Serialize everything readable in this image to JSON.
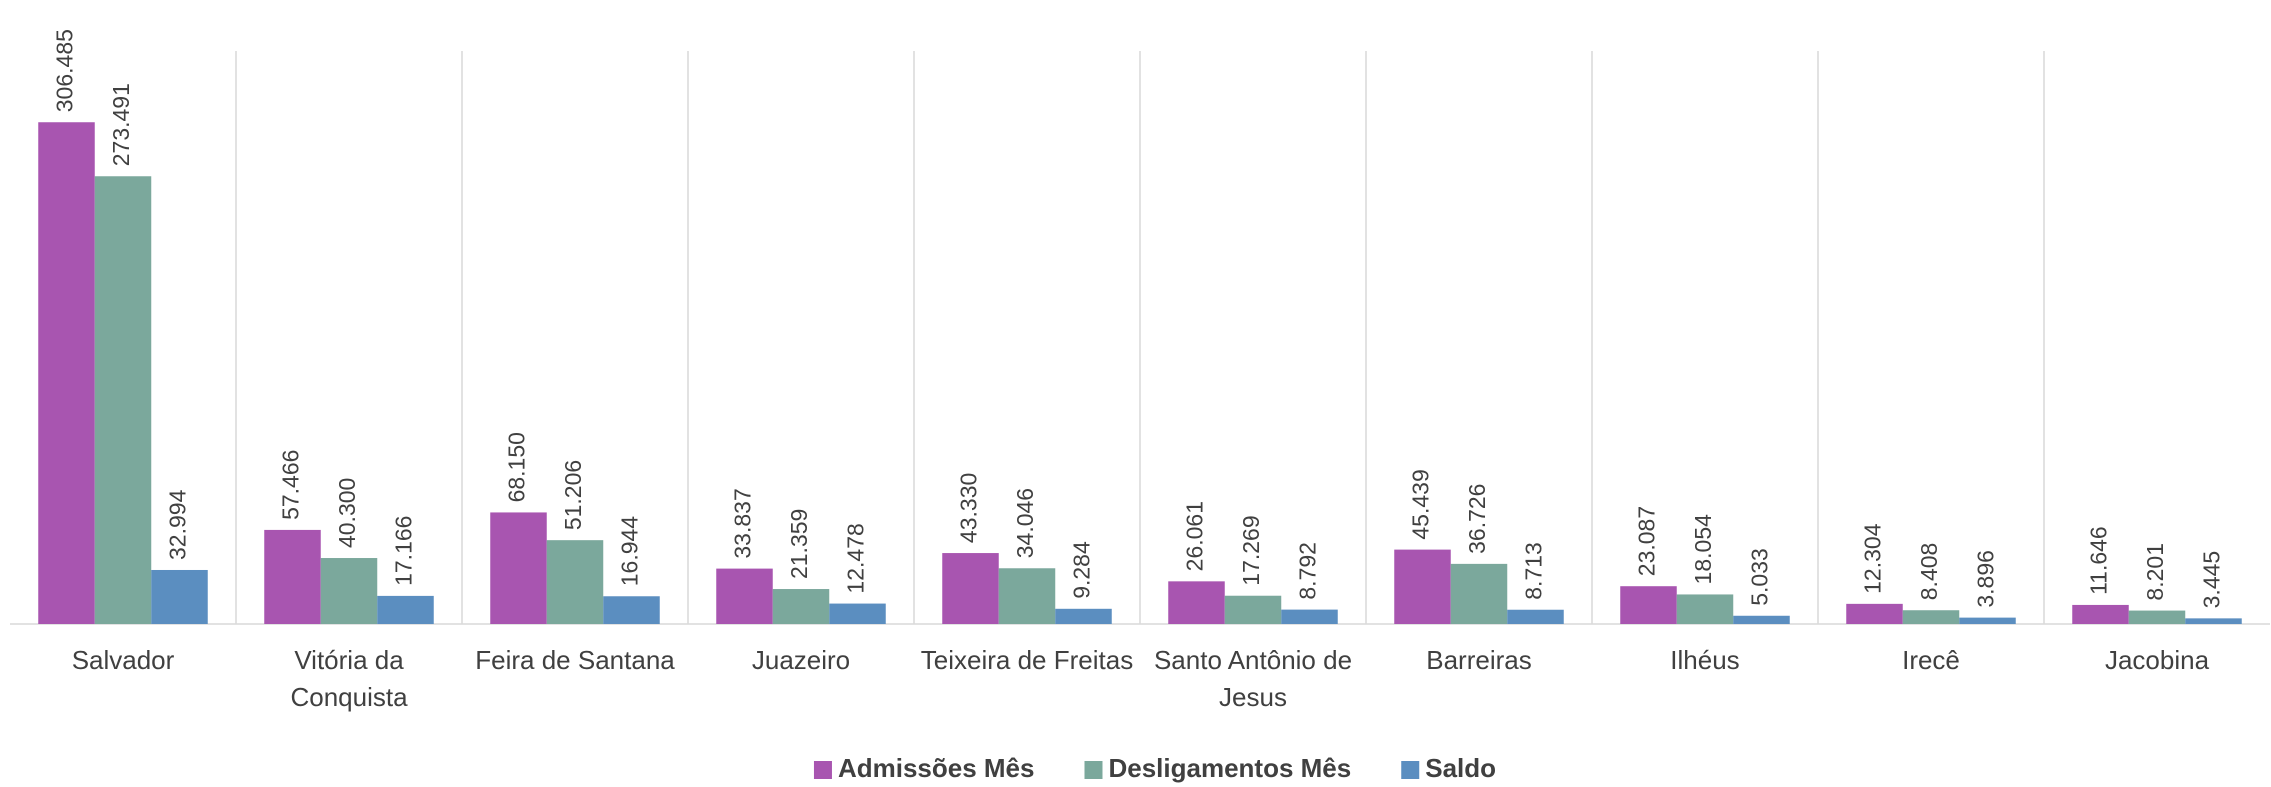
{
  "chart_data": {
    "type": "bar",
    "categories": [
      "Salvador",
      "Vitória da Conquista",
      "Feira de Santana",
      "Juazeiro",
      "Teixeira de Freitas",
      "Santo Antônio de Jesus",
      "Barreiras",
      "Ilhéus",
      "Irecê",
      "Jacobina"
    ],
    "series": [
      {
        "name": "Admissões Mês",
        "color": "#a855b0",
        "values": [
          306485,
          57466,
          68150,
          33837,
          43330,
          26061,
          45439,
          23087,
          12304,
          11646
        ],
        "value_labels": [
          "306.485",
          "57.466",
          "68.150",
          "33.837",
          "43.330",
          "26.061",
          "45.439",
          "23.087",
          "12.304",
          "11.646"
        ]
      },
      {
        "name": "Desligamentos Mês",
        "color": "#7ba89c",
        "values": [
          273491,
          40300,
          51206,
          21359,
          34046,
          17269,
          36726,
          18054,
          8408,
          8201
        ],
        "value_labels": [
          "273.491",
          "40.300",
          "51.206",
          "21.359",
          "34.046",
          "17.269",
          "36.726",
          "18.054",
          "8.408",
          "8.201"
        ]
      },
      {
        "name": "Saldo",
        "color": "#5b8ec0",
        "values": [
          32994,
          17166,
          16944,
          12478,
          9284,
          8792,
          8713,
          5033,
          3896,
          3445
        ],
        "value_labels": [
          "32.994",
          "17.166",
          "16.944",
          "12.478",
          "9.284",
          "8.792",
          "8.713",
          "5.033",
          "3.896",
          "3.445"
        ]
      }
    ],
    "ylim": [
      0,
      350000
    ],
    "legend": "bottom"
  }
}
